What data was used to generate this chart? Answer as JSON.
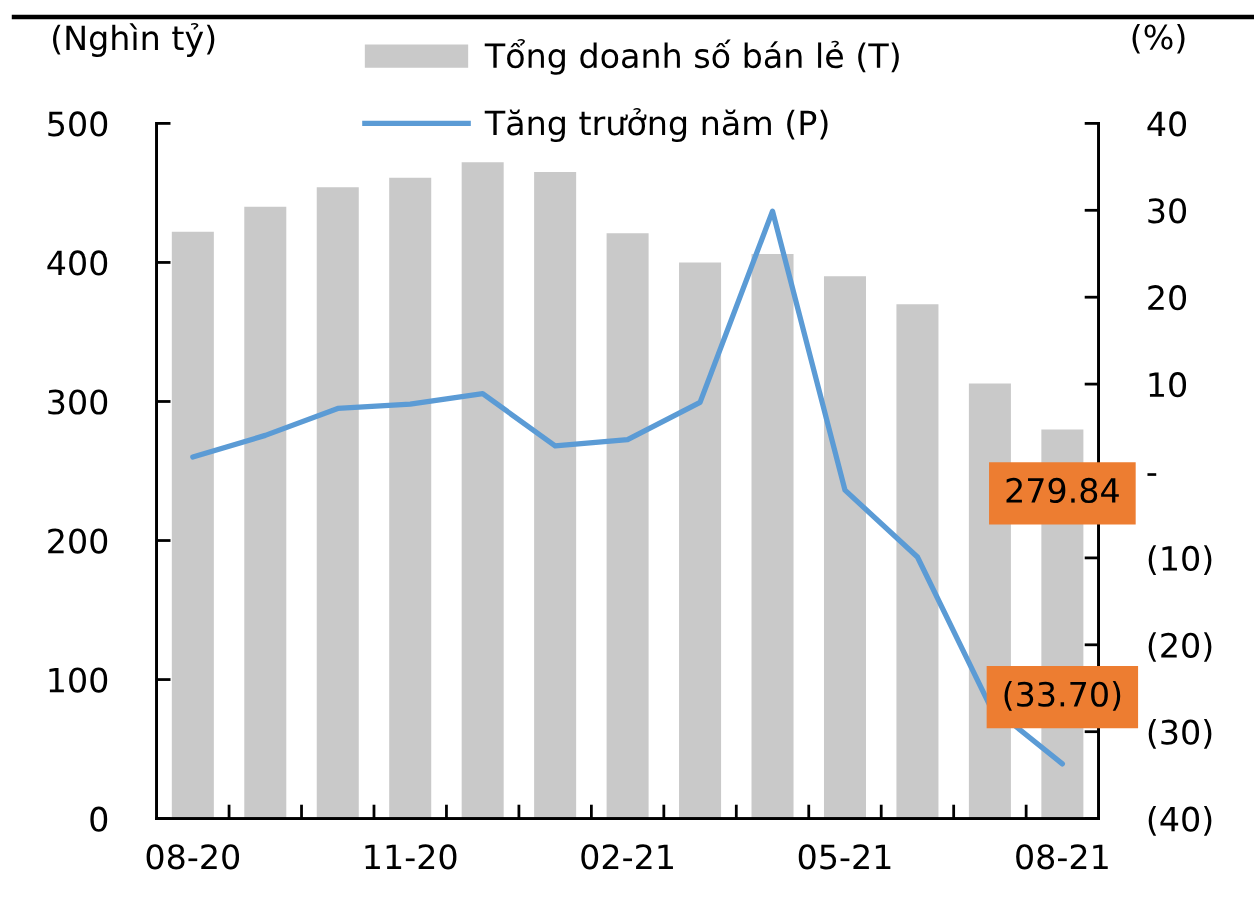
{
  "chart_data": {
    "type": "bar",
    "ylabel": "(Nghìn tỷ)",
    "y2label": "(%)",
    "categories": [
      "08-20",
      null,
      null,
      "11-20",
      null,
      null,
      "02-21",
      null,
      null,
      "05-21",
      null,
      null,
      "08-21"
    ],
    "series": [
      {
        "name": "Tổng doanh số bán lẻ (T)",
        "color": "#c9c9c9",
        "values": [
          422,
          440,
          454,
          461,
          472,
          465,
          421,
          400,
          406,
          390,
          370,
          313,
          279.84
        ],
        "value_labels": [
          null,
          null,
          null,
          null,
          null,
          null,
          null,
          null,
          null,
          null,
          null,
          null,
          "279.84"
        ]
      },
      {
        "name": "Tăng trưởng năm (P)",
        "type": "line",
        "axis": "y2",
        "color": "#5b9bd5",
        "values": [
          1.6,
          4.1,
          7.2,
          7.7,
          8.9,
          2.9,
          3.6,
          7.9,
          29.9,
          -2.2,
          -9.9,
          -27,
          -33.7
        ],
        "value_labels": [
          null,
          null,
          null,
          null,
          null,
          null,
          null,
          null,
          null,
          null,
          null,
          null,
          "(33.70)"
        ]
      }
    ],
    "ylim": [
      0,
      500
    ],
    "yticks": [
      0,
      100,
      200,
      300,
      400,
      500
    ],
    "y2lim": [
      -40,
      40
    ],
    "y2ticks": [
      {
        "value": -40,
        "label": "(40)"
      },
      {
        "value": -30,
        "label": "(30)"
      },
      {
        "value": -20,
        "label": "(20)"
      },
      {
        "value": -10,
        "label": "(10)"
      },
      {
        "value": 0,
        "label": "-"
      },
      10,
      20,
      30,
      40
    ],
    "legend": "top"
  }
}
